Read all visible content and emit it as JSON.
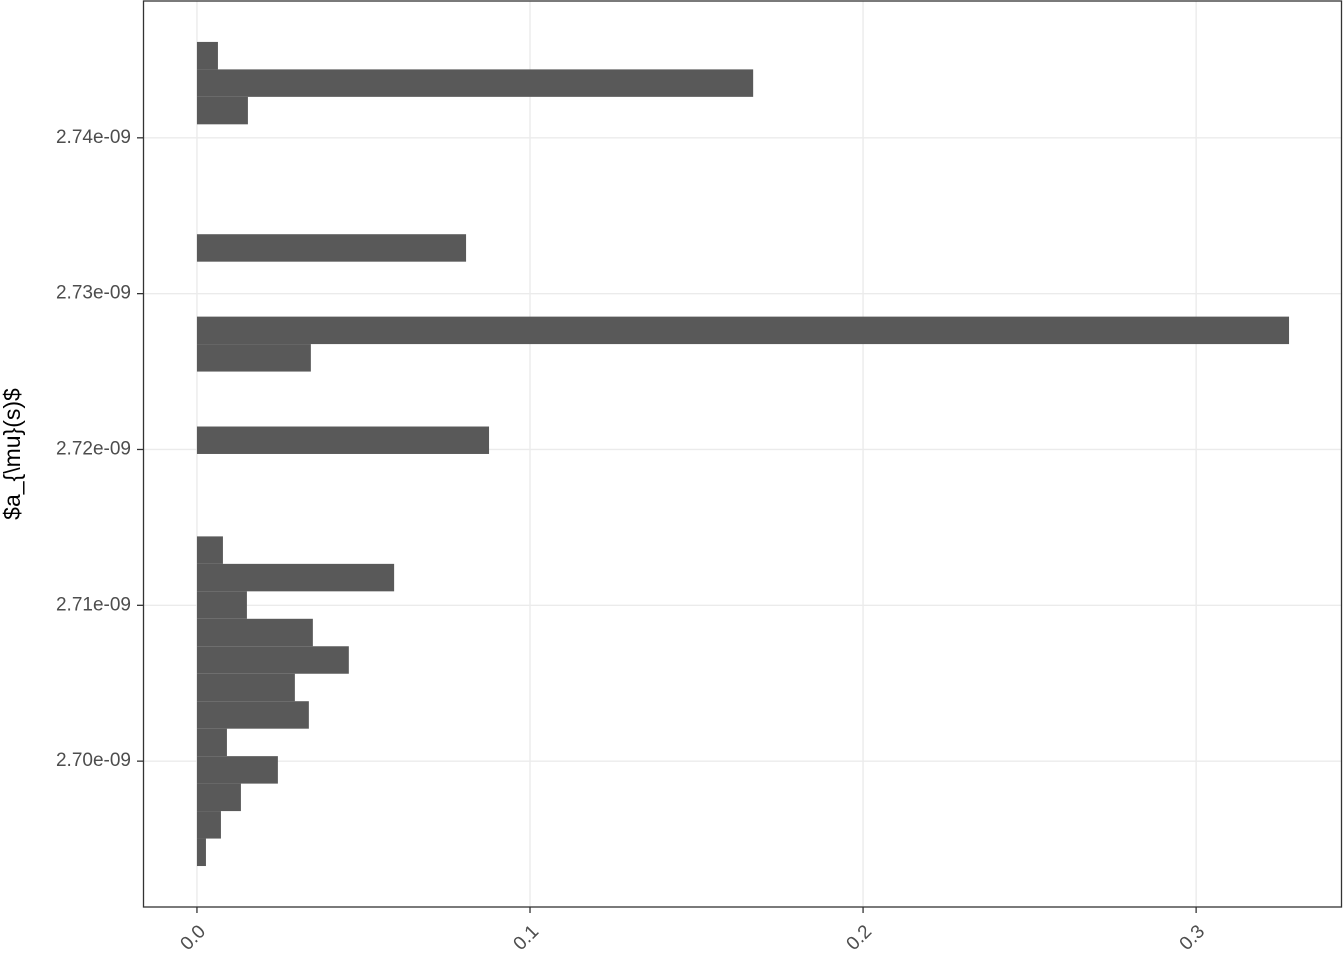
{
  "chart_data": {
    "type": "histogram",
    "orientation": "horizontal",
    "y_label": "$a_{\\mu}(s)$",
    "bins": [
      2.693269e-09,
      2.695032e-09,
      2.696795e-09,
      2.698558e-09,
      2.70032e-09,
      2.702083e-09,
      2.703846e-09,
      2.705609e-09,
      2.707372e-09,
      2.709135e-09,
      2.710897e-09,
      2.71266e-09,
      2.714423e-09,
      2.716186e-09,
      2.717949e-09,
      2.719712e-09,
      2.721474e-09,
      2.723237e-09,
      2.725e-09,
      2.726763e-09,
      2.728526e-09,
      2.730289e-09,
      2.732052e-09,
      2.733814e-09,
      2.735577e-09,
      2.73734e-09,
      2.739103e-09,
      2.740866e-09,
      2.742629e-09,
      2.744391e-09,
      2.746154e-09
    ],
    "values": [
      0.0027,
      0.0072,
      0.0132,
      0.0243,
      0.009,
      0.0336,
      0.0294,
      0.0456,
      0.0348,
      0.015,
      0.0592,
      0.0078,
      0,
      0,
      0,
      0.0877,
      0,
      0,
      0.0342,
      0.3279,
      0,
      0,
      0.0808,
      0,
      0,
      0,
      0,
      0.0153,
      0.167,
      0.0063
    ],
    "color": "#595959",
    "xlim": [
      -0.0162,
      0.3438
    ],
    "xticks": [
      {
        "value": 0,
        "label": "0.0"
      },
      0.1,
      0.2,
      0.3
    ],
    "ylim": [
      2.69064e-09,
      2.74878e-09
    ],
    "yticks": [
      {
        "value": 2.7e-09,
        "label": "2.70e-09"
      },
      {
        "value": 2.71e-09,
        "label": "2.71e-09"
      },
      {
        "value": 2.72e-09,
        "label": "2.72e-09"
      },
      {
        "value": 2.73e-09,
        "label": "2.73e-09"
      },
      {
        "value": 2.74e-09,
        "label": "2.74e-09"
      }
    ],
    "grid": true
  }
}
